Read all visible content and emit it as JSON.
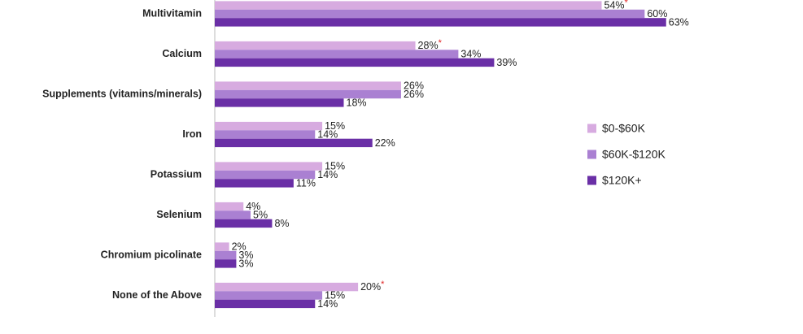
{
  "chart_data": {
    "type": "bar",
    "orientation": "horizontal",
    "categories": [
      "Multivitamin",
      "Calcium",
      "Supplements (vitamins/minerals)",
      "Iron",
      "Potassium",
      "Selenium",
      "Chromium picolinate",
      "None of the Above"
    ],
    "series": [
      {
        "name": "$0-$60K",
        "color": "#d7abe0",
        "values": [
          54,
          28,
          26,
          15,
          15,
          4,
          2,
          20
        ],
        "value_labels": [
          "54%",
          "28%",
          "26%",
          "15%",
          "15%",
          "4%",
          "2%",
          "20%"
        ],
        "flags": [
          "*",
          "*",
          null,
          null,
          null,
          null,
          null,
          "*"
        ]
      },
      {
        "name": "$60K-$120K",
        "color": "#aa80d2",
        "values": [
          60,
          34,
          26,
          14,
          14,
          5,
          3,
          15
        ],
        "value_labels": [
          "60%",
          "34%",
          "26%",
          "14%",
          "14%",
          "5%",
          "3%",
          "15%"
        ]
      },
      {
        "name": "$120K+",
        "color": "#6a2fa6",
        "values": [
          63,
          39,
          18,
          22,
          11,
          8,
          3,
          14
        ],
        "value_labels": [
          "63%",
          "39%",
          "18%",
          "22%",
          "11%",
          "8%",
          "3%",
          "14%"
        ]
      }
    ],
    "flag_color": "#e02020",
    "xlim": [
      0,
      72
    ],
    "grid": false,
    "legend": "right"
  }
}
